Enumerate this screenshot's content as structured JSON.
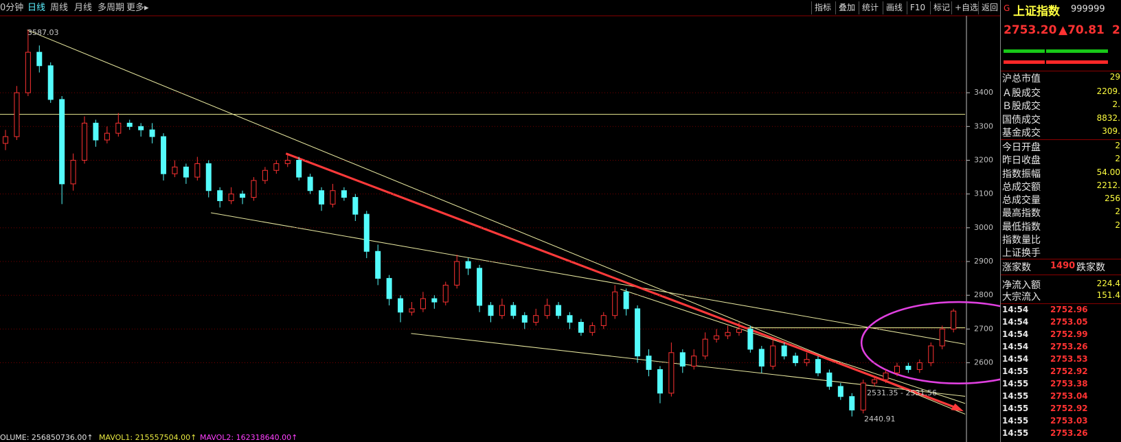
{
  "toolbar": {
    "left": [
      "0分钟",
      "日线",
      "周线",
      "月线",
      "多周期",
      "更多▸"
    ],
    "right": [
      "指标",
      "叠加",
      "统计",
      "画线",
      "F10",
      "标记",
      "+自选",
      "返回"
    ]
  },
  "chart_data": {
    "type": "candlestick",
    "ylim": [
      2410,
      3630
    ],
    "yticks": [
      2600,
      2700,
      2800,
      2900,
      3000,
      3100,
      3200,
      3300,
      3400
    ],
    "candles": [
      [
        3250,
        3290,
        3230,
        3270
      ],
      [
        3270,
        3420,
        3260,
        3400
      ],
      [
        3400,
        3587.03,
        3390,
        3520
      ],
      [
        3520,
        3540,
        3460,
        3480
      ],
      [
        3480,
        3490,
        3370,
        3380
      ],
      [
        3380,
        3390,
        3070,
        3130
      ],
      [
        3130,
        3220,
        3110,
        3200
      ],
      [
        3200,
        3330,
        3190,
        3310
      ],
      [
        3310,
        3320,
        3240,
        3260
      ],
      [
        3260,
        3300,
        3250,
        3280
      ],
      [
        3280,
        3340,
        3270,
        3310
      ],
      [
        3310,
        3320,
        3290,
        3300
      ],
      [
        3300,
        3310,
        3270,
        3290
      ],
      [
        3290,
        3310,
        3250,
        3270
      ],
      [
        3270,
        3280,
        3140,
        3160
      ],
      [
        3160,
        3200,
        3150,
        3180
      ],
      [
        3180,
        3190,
        3130,
        3150
      ],
      [
        3150,
        3210,
        3140,
        3190
      ],
      [
        3190,
        3200,
        3090,
        3110
      ],
      [
        3110,
        3120,
        3060,
        3080
      ],
      [
        3080,
        3120,
        3070,
        3100
      ],
      [
        3100,
        3110,
        3070,
        3090
      ],
      [
        3090,
        3150,
        3080,
        3140
      ],
      [
        3140,
        3180,
        3130,
        3170
      ],
      [
        3170,
        3200,
        3160,
        3190
      ],
      [
        3190,
        3220,
        3180,
        3200
      ],
      [
        3200,
        3210,
        3140,
        3150
      ],
      [
        3150,
        3160,
        3100,
        3110
      ],
      [
        3110,
        3120,
        3050,
        3070
      ],
      [
        3070,
        3130,
        3060,
        3110
      ],
      [
        3110,
        3120,
        3080,
        3090
      ],
      [
        3090,
        3100,
        3020,
        3040
      ],
      [
        3040,
        3050,
        2910,
        2930
      ],
      [
        2930,
        2950,
        2830,
        2850
      ],
      [
        2850,
        2860,
        2770,
        2790
      ],
      [
        2790,
        2800,
        2720,
        2750
      ],
      [
        2750,
        2780,
        2740,
        2760
      ],
      [
        2760,
        2810,
        2750,
        2790
      ],
      [
        2790,
        2800,
        2760,
        2780
      ],
      [
        2780,
        2840,
        2770,
        2830
      ],
      [
        2830,
        2920,
        2820,
        2900
      ],
      [
        2900,
        2910,
        2860,
        2880
      ],
      [
        2880,
        2890,
        2750,
        2770
      ],
      [
        2770,
        2780,
        2720,
        2740
      ],
      [
        2740,
        2790,
        2730,
        2770
      ],
      [
        2770,
        2780,
        2730,
        2740
      ],
      [
        2740,
        2750,
        2700,
        2720
      ],
      [
        2720,
        2760,
        2710,
        2740
      ],
      [
        2740,
        2790,
        2730,
        2770
      ],
      [
        2770,
        2780,
        2730,
        2740
      ],
      [
        2740,
        2750,
        2700,
        2720
      ],
      [
        2720,
        2730,
        2680,
        2690
      ],
      [
        2690,
        2720,
        2680,
        2710
      ],
      [
        2710,
        2750,
        2700,
        2740
      ],
      [
        2740,
        2830,
        2730,
        2810
      ],
      [
        2810,
        2820,
        2740,
        2760
      ],
      [
        2760,
        2770,
        2600,
        2620
      ],
      [
        2620,
        2640,
        2560,
        2580
      ],
      [
        2580,
        2590,
        2480,
        2510
      ],
      [
        2510,
        2660,
        2500,
        2630
      ],
      [
        2630,
        2640,
        2570,
        2590
      ],
      [
        2590,
        2640,
        2580,
        2620
      ],
      [
        2620,
        2690,
        2610,
        2670
      ],
      [
        2670,
        2700,
        2660,
        2680
      ],
      [
        2680,
        2710,
        2670,
        2690
      ],
      [
        2690,
        2720,
        2680,
        2700
      ],
      [
        2700,
        2710,
        2630,
        2640
      ],
      [
        2640,
        2650,
        2570,
        2590
      ],
      [
        2590,
        2670,
        2580,
        2650
      ],
      [
        2650,
        2660,
        2610,
        2620
      ],
      [
        2620,
        2630,
        2590,
        2600
      ],
      [
        2600,
        2630,
        2590,
        2610
      ],
      [
        2610,
        2620,
        2560,
        2570
      ],
      [
        2570,
        2580,
        2520,
        2530
      ],
      [
        2530,
        2540,
        2490,
        2500
      ],
      [
        2500,
        2510,
        2440.91,
        2460
      ],
      [
        2460,
        2550,
        2450,
        2540
      ],
      [
        2540,
        2560,
        2530,
        2550
      ],
      [
        2550,
        2580,
        2540,
        2570
      ],
      [
        2570,
        2600,
        2560,
        2590
      ],
      [
        2590,
        2600,
        2570,
        2580
      ],
      [
        2580,
        2610,
        2570,
        2600
      ],
      [
        2600,
        2660,
        2590,
        2650
      ],
      [
        2650,
        2710,
        2640,
        2700
      ],
      [
        2700,
        2760,
        2690,
        2753.2
      ]
    ],
    "up_color": "#ff3232",
    "down_color": "#54fcfc",
    "annotations": [
      "3587.03",
      "2531.35 - 2531.56",
      "2440.91"
    ],
    "volume": [
      "OLUME: 256850736.00↑",
      "MAVOL1: 215557504.00↑",
      "MAVOL2: 162318640.00↑"
    ]
  },
  "panel": {
    "badge": "G",
    "name": "上证指数",
    "code": "999999",
    "price": "2753.20",
    "change": "▲70.81",
    "extra": "2",
    "rows": [
      [
        "沪总市值",
        "29"
      ],
      [
        "Ａ股成交",
        "2209."
      ],
      [
        "Ｂ股成交",
        "2."
      ],
      [
        "国债成交",
        "8832."
      ],
      [
        "基金成交",
        "309."
      ],
      [
        "今日开盘",
        "2"
      ],
      [
        "昨日收盘",
        "2"
      ],
      [
        "指数振幅",
        "54.00"
      ],
      [
        "总成交额",
        "2212."
      ],
      [
        "总成交量",
        "256"
      ],
      [
        "最高指数",
        "2"
      ],
      [
        "最低指数",
        "2"
      ],
      [
        "指数量比",
        ""
      ],
      [
        "上证换手",
        ""
      ]
    ],
    "breadth": [
      "涨家数",
      "1490",
      "跌家数"
    ],
    "flows": [
      [
        "净流入额",
        "224.4"
      ],
      [
        "大宗流入",
        "151.4"
      ]
    ],
    "ticks": [
      [
        "14:54",
        "2752.96"
      ],
      [
        "14:54",
        "2753.05"
      ],
      [
        "14:54",
        "2752.99"
      ],
      [
        "14:54",
        "2753.26"
      ],
      [
        "14:54",
        "2753.53"
      ],
      [
        "14:55",
        "2752.92"
      ],
      [
        "14:55",
        "2753.38"
      ],
      [
        "14:55",
        "2753.04"
      ],
      [
        "14:55",
        "2752.92"
      ],
      [
        "14:55",
        "2753.03"
      ],
      [
        "14:55",
        "2753.26"
      ]
    ]
  }
}
